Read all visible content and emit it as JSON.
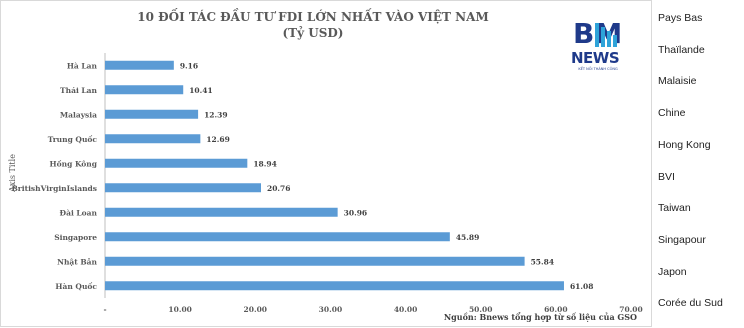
{
  "chart_data": {
    "type": "bar",
    "orientation": "horizontal",
    "title": "10 ĐỐI TÁC ĐẦU TƯ FDI LỚN NHẤT VÀO VIỆT NAM",
    "subtitle": "(Tỷ USD)",
    "ylabel": "Axis Title",
    "categories": [
      "Hà Lan",
      "Thái Lan",
      "Malaysia",
      "Trung Quốc",
      "Hồng Kông",
      "BritishVirginIslands",
      "Đài Loan",
      "Singapore",
      "Nhật Bản",
      "Hàn Quốc"
    ],
    "values": [
      9.16,
      10.41,
      12.39,
      12.69,
      18.94,
      20.76,
      30.96,
      45.89,
      55.84,
      61.08
    ],
    "value_labels": [
      "9.16",
      "10.41",
      "12.39",
      "12.69",
      "18.94",
      "20.76",
      "30.96",
      "45.89",
      "55.84",
      "61.08"
    ],
    "x_ticks": [
      "-",
      "10.00",
      "20.00",
      "30.00",
      "40.00",
      "50.00",
      "60.00",
      "70.00"
    ],
    "xlim": [
      0,
      70
    ],
    "grid": false,
    "bar_color": "#5b9bd5",
    "source": "Nguồn: Bnews tổng hợp từ số liệu của GSO"
  },
  "logo": {
    "letters": "BM",
    "name": "NEWS",
    "tagline": "KẾT NỐI THÀNH CÔNG"
  },
  "side_labels": [
    "Pays Bas",
    "Thaïlande",
    "Malaisie",
    "Chine",
    "Hong Kong",
    "BVI",
    "Taiwan",
    "Singapour",
    "Japon",
    "Corée du Sud"
  ]
}
